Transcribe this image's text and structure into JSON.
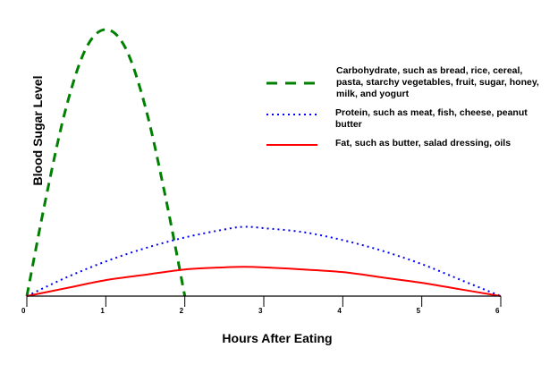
{
  "chart_data": {
    "type": "line",
    "title": "",
    "xlabel": "Hours After Eating",
    "ylabel": "Blood Sugar Level",
    "xlim": [
      0,
      6
    ],
    "ylim": [
      0,
      100
    ],
    "xticks": [
      "0",
      "1",
      "2",
      "3",
      "4",
      "5",
      "6"
    ],
    "grid": false,
    "legend_position": "right",
    "series": [
      {
        "name": "Carbohydrate, such as bread, rice, cereal, pasta, starchy vegetables, fruit, sugar, honey, milk, and yogurt",
        "color": "#008000",
        "style": "dashed",
        "x": [
          0,
          0.25,
          0.5,
          0.75,
          1,
          1.25,
          1.5,
          1.75,
          2
        ],
        "y": [
          0,
          38,
          71,
          93,
          100,
          93,
          71,
          38,
          0
        ]
      },
      {
        "name": "Protein, such as meat, fish, cheese, peanut butter",
        "color": "#0000ff",
        "style": "dotted",
        "x": [
          0,
          0.5,
          1,
          1.5,
          2,
          2.5,
          2.75,
          3,
          3.5,
          4,
          4.5,
          5,
          5.5,
          6
        ],
        "y": [
          0,
          7,
          13,
          18,
          22,
          25,
          26,
          25.5,
          24,
          21,
          17,
          12,
          6,
          0
        ]
      },
      {
        "name": "Fat, such as butter, salad dressing, oils",
        "color": "#ff0000",
        "style": "solid",
        "x": [
          0,
          0.5,
          1,
          1.5,
          2,
          2.5,
          2.75,
          3,
          3.5,
          4,
          4.5,
          5,
          5.5,
          6
        ],
        "y": [
          0,
          3,
          6,
          8,
          10,
          10.8,
          11,
          10.8,
          10,
          9,
          7,
          5,
          2.5,
          0
        ]
      }
    ]
  }
}
